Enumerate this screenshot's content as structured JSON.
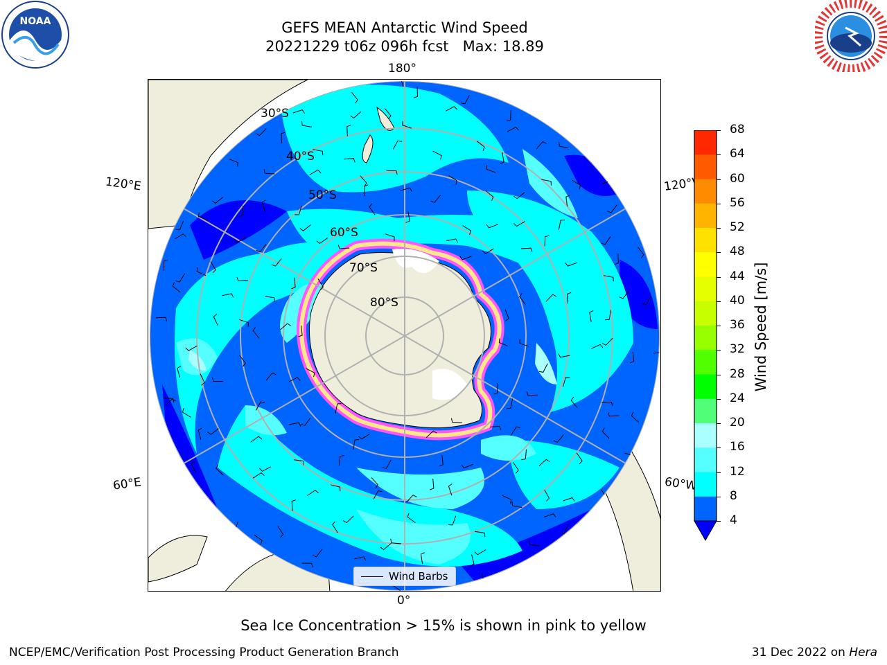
{
  "header": {
    "title_line1": "GEFS MEAN Antarctic Wind Speed",
    "title_line2": "20221229 t06z 096h fcst   Max: 18.89"
  },
  "map": {
    "projection": "south-polar-stereographic",
    "lon_labels": {
      "top": "180°",
      "bottom": "0°",
      "left_upper": "120°E",
      "right_upper": "120°W",
      "left_lower": "60°E",
      "right_lower": "60°W"
    },
    "lat_labels": [
      "30°S",
      "40°S",
      "50°S",
      "60°S",
      "70°S",
      "80°S"
    ],
    "legend_label": "Wind Barbs",
    "colors": {
      "ocean_deep": "#0000ff",
      "ocean_low": "#0064ff",
      "ocean_mid": "#00ffff",
      "ocean_high": "#55ffff",
      "ocean_max": "#aaffff",
      "land": "#efeedd",
      "ice_pink": "#ff55ff",
      "ice_yellow": "#ffe88a"
    }
  },
  "colorbar": {
    "title": "Wind Speed [m/s]",
    "ticks": [
      "68",
      "64",
      "60",
      "56",
      "52",
      "48",
      "44",
      "40",
      "36",
      "32",
      "28",
      "24",
      "20",
      "16",
      "12",
      "8",
      "4"
    ],
    "colors": [
      "#ff0000",
      "#ff2800",
      "#ff5a00",
      "#ff8c00",
      "#ffb400",
      "#ffe100",
      "#ffff00",
      "#e6ff00",
      "#c8ff00",
      "#96ff00",
      "#50ff00",
      "#00ff00",
      "#50ff78",
      "#aaffff",
      "#55ffff",
      "#00ffff",
      "#0064ff",
      "#0000ff"
    ]
  },
  "caption": "Sea Ice Concentration > 15% is shown in pink to yellow",
  "footer": {
    "left": "NCEP/EMC/Verification Post Processing Product Generation Branch",
    "right_date": "31 Dec 2022 on ",
    "right_host": "Hera"
  },
  "logos": {
    "left": "noaa-logo",
    "right": "nws-logo"
  }
}
